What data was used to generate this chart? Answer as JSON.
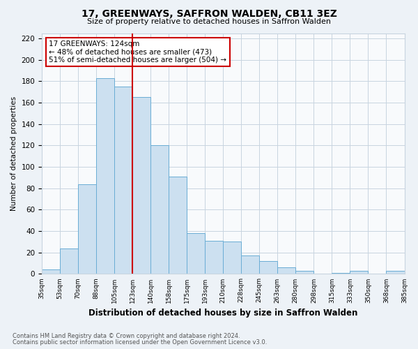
{
  "title": "17, GREENWAYS, SAFFRON WALDEN, CB11 3EZ",
  "subtitle": "Size of property relative to detached houses in Saffron Walden",
  "xlabel": "Distribution of detached houses by size in Saffron Walden",
  "ylabel": "Number of detached properties",
  "bin_labels": [
    "35sqm",
    "53sqm",
    "70sqm",
    "88sqm",
    "105sqm",
    "123sqm",
    "140sqm",
    "158sqm",
    "175sqm",
    "193sqm",
    "210sqm",
    "228sqm",
    "245sqm",
    "263sqm",
    "280sqm",
    "298sqm",
    "315sqm",
    "333sqm",
    "350sqm",
    "368sqm",
    "385sqm"
  ],
  "bar_heights": [
    4,
    24,
    84,
    183,
    175,
    165,
    120,
    91,
    38,
    31,
    30,
    17,
    12,
    6,
    3,
    0,
    1,
    3,
    0,
    3
  ],
  "bar_color": "#cce0f0",
  "bar_edge_color": "#6aadd5",
  "vline_bar_index": 5,
  "vline_color": "#cc0000",
  "annotation_line1": "17 GREENWAYS: 124sqm",
  "annotation_line2": "← 48% of detached houses are smaller (473)",
  "annotation_line3": "51% of semi-detached houses are larger (504) →",
  "annotation_box_color": "#ffffff",
  "annotation_box_edge": "#cc0000",
  "ylim": [
    0,
    225
  ],
  "yticks": [
    0,
    20,
    40,
    60,
    80,
    100,
    120,
    140,
    160,
    180,
    200,
    220
  ],
  "footer1": "Contains HM Land Registry data © Crown copyright and database right 2024.",
  "footer2": "Contains public sector information licensed under the Open Government Licence v3.0.",
  "bg_color": "#edf2f7",
  "plot_bg_color": "#f8fafc",
  "grid_color": "#c8d4e0"
}
